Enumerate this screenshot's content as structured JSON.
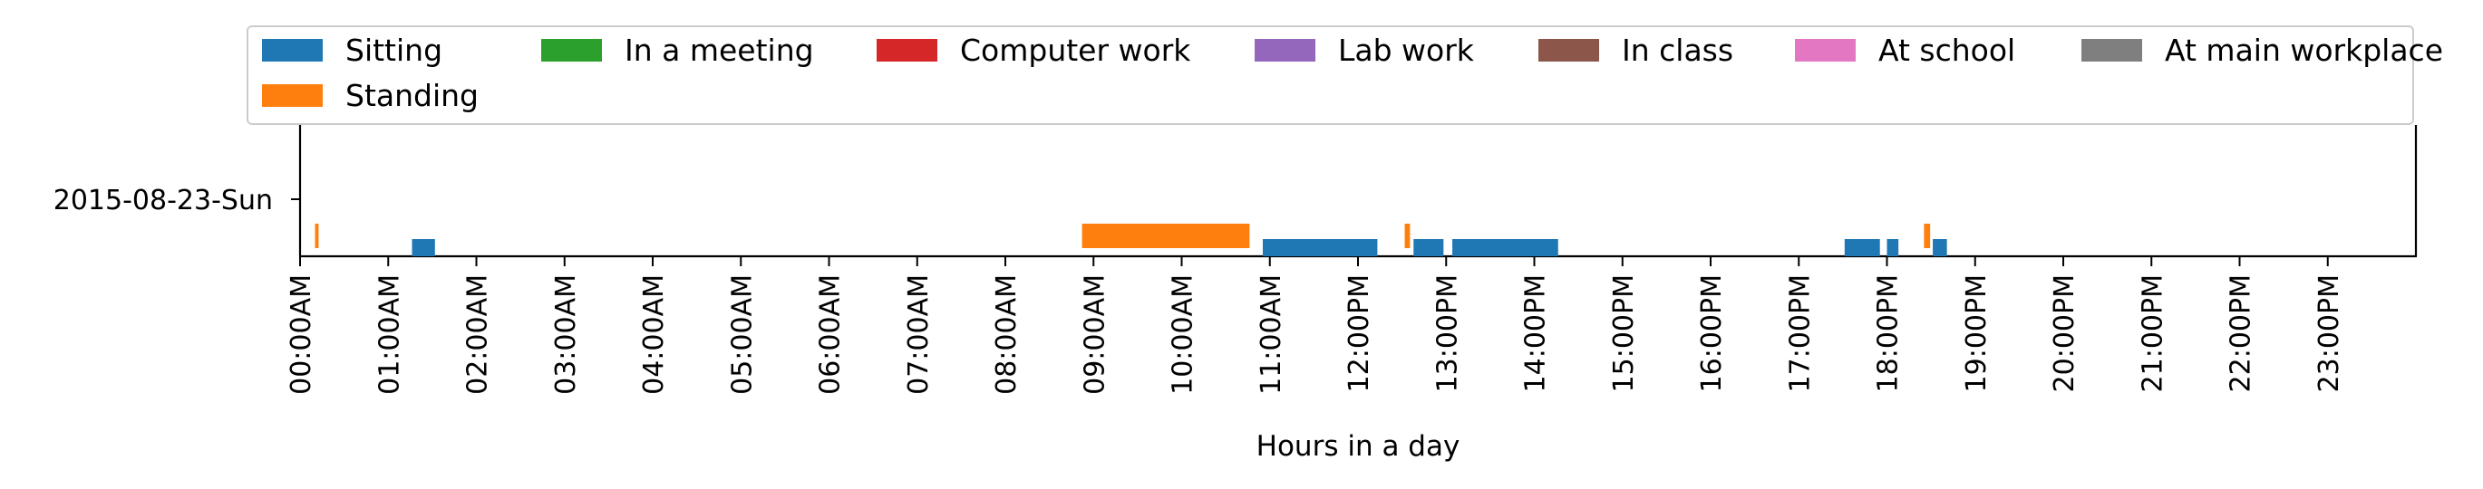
{
  "chart_data": {
    "type": "timeline",
    "xlabel": "Hours in a day",
    "ylabel": "",
    "xlim": [
      0,
      24
    ],
    "y_categories": [
      "2015-08-23-Sun"
    ],
    "x_ticks": [
      "00:00AM",
      "01:00AM",
      "02:00AM",
      "03:00AM",
      "04:00AM",
      "05:00AM",
      "06:00AM",
      "07:00AM",
      "08:00AM",
      "09:00AM",
      "10:00AM",
      "11:00AM",
      "12:00PM",
      "13:00PM",
      "14:00PM",
      "15:00PM",
      "16:00PM",
      "17:00PM",
      "18:00PM",
      "19:00PM",
      "20:00PM",
      "21:00PM",
      "22:00PM",
      "23:00PM"
    ],
    "legend_position": "top",
    "grid": false,
    "series": [
      {
        "name": "Sitting",
        "color": "#1f77b4",
        "segments": [
          [
            1.27,
            1.53
          ],
          [
            10.92,
            12.22
          ],
          [
            12.63,
            12.97
          ],
          [
            13.07,
            14.27
          ],
          [
            17.52,
            17.92
          ],
          [
            18.0,
            18.13
          ],
          [
            18.52,
            18.68
          ]
        ]
      },
      {
        "name": "Standing",
        "color": "#ff7f0e",
        "segments": [
          [
            0.17,
            0.21
          ],
          [
            8.87,
            10.77
          ],
          [
            12.53,
            12.59
          ],
          [
            18.42,
            18.49
          ]
        ]
      },
      {
        "name": "In a meeting",
        "color": "#2ca02c",
        "segments": []
      },
      {
        "name": "Computer work",
        "color": "#d62728",
        "segments": []
      },
      {
        "name": "Lab work",
        "color": "#9467bd",
        "segments": []
      },
      {
        "name": "In class",
        "color": "#8c564b",
        "segments": []
      },
      {
        "name": "At school",
        "color": "#e377c2",
        "segments": []
      },
      {
        "name": "At main workplace",
        "color": "#7f7f7f",
        "segments": []
      }
    ]
  }
}
